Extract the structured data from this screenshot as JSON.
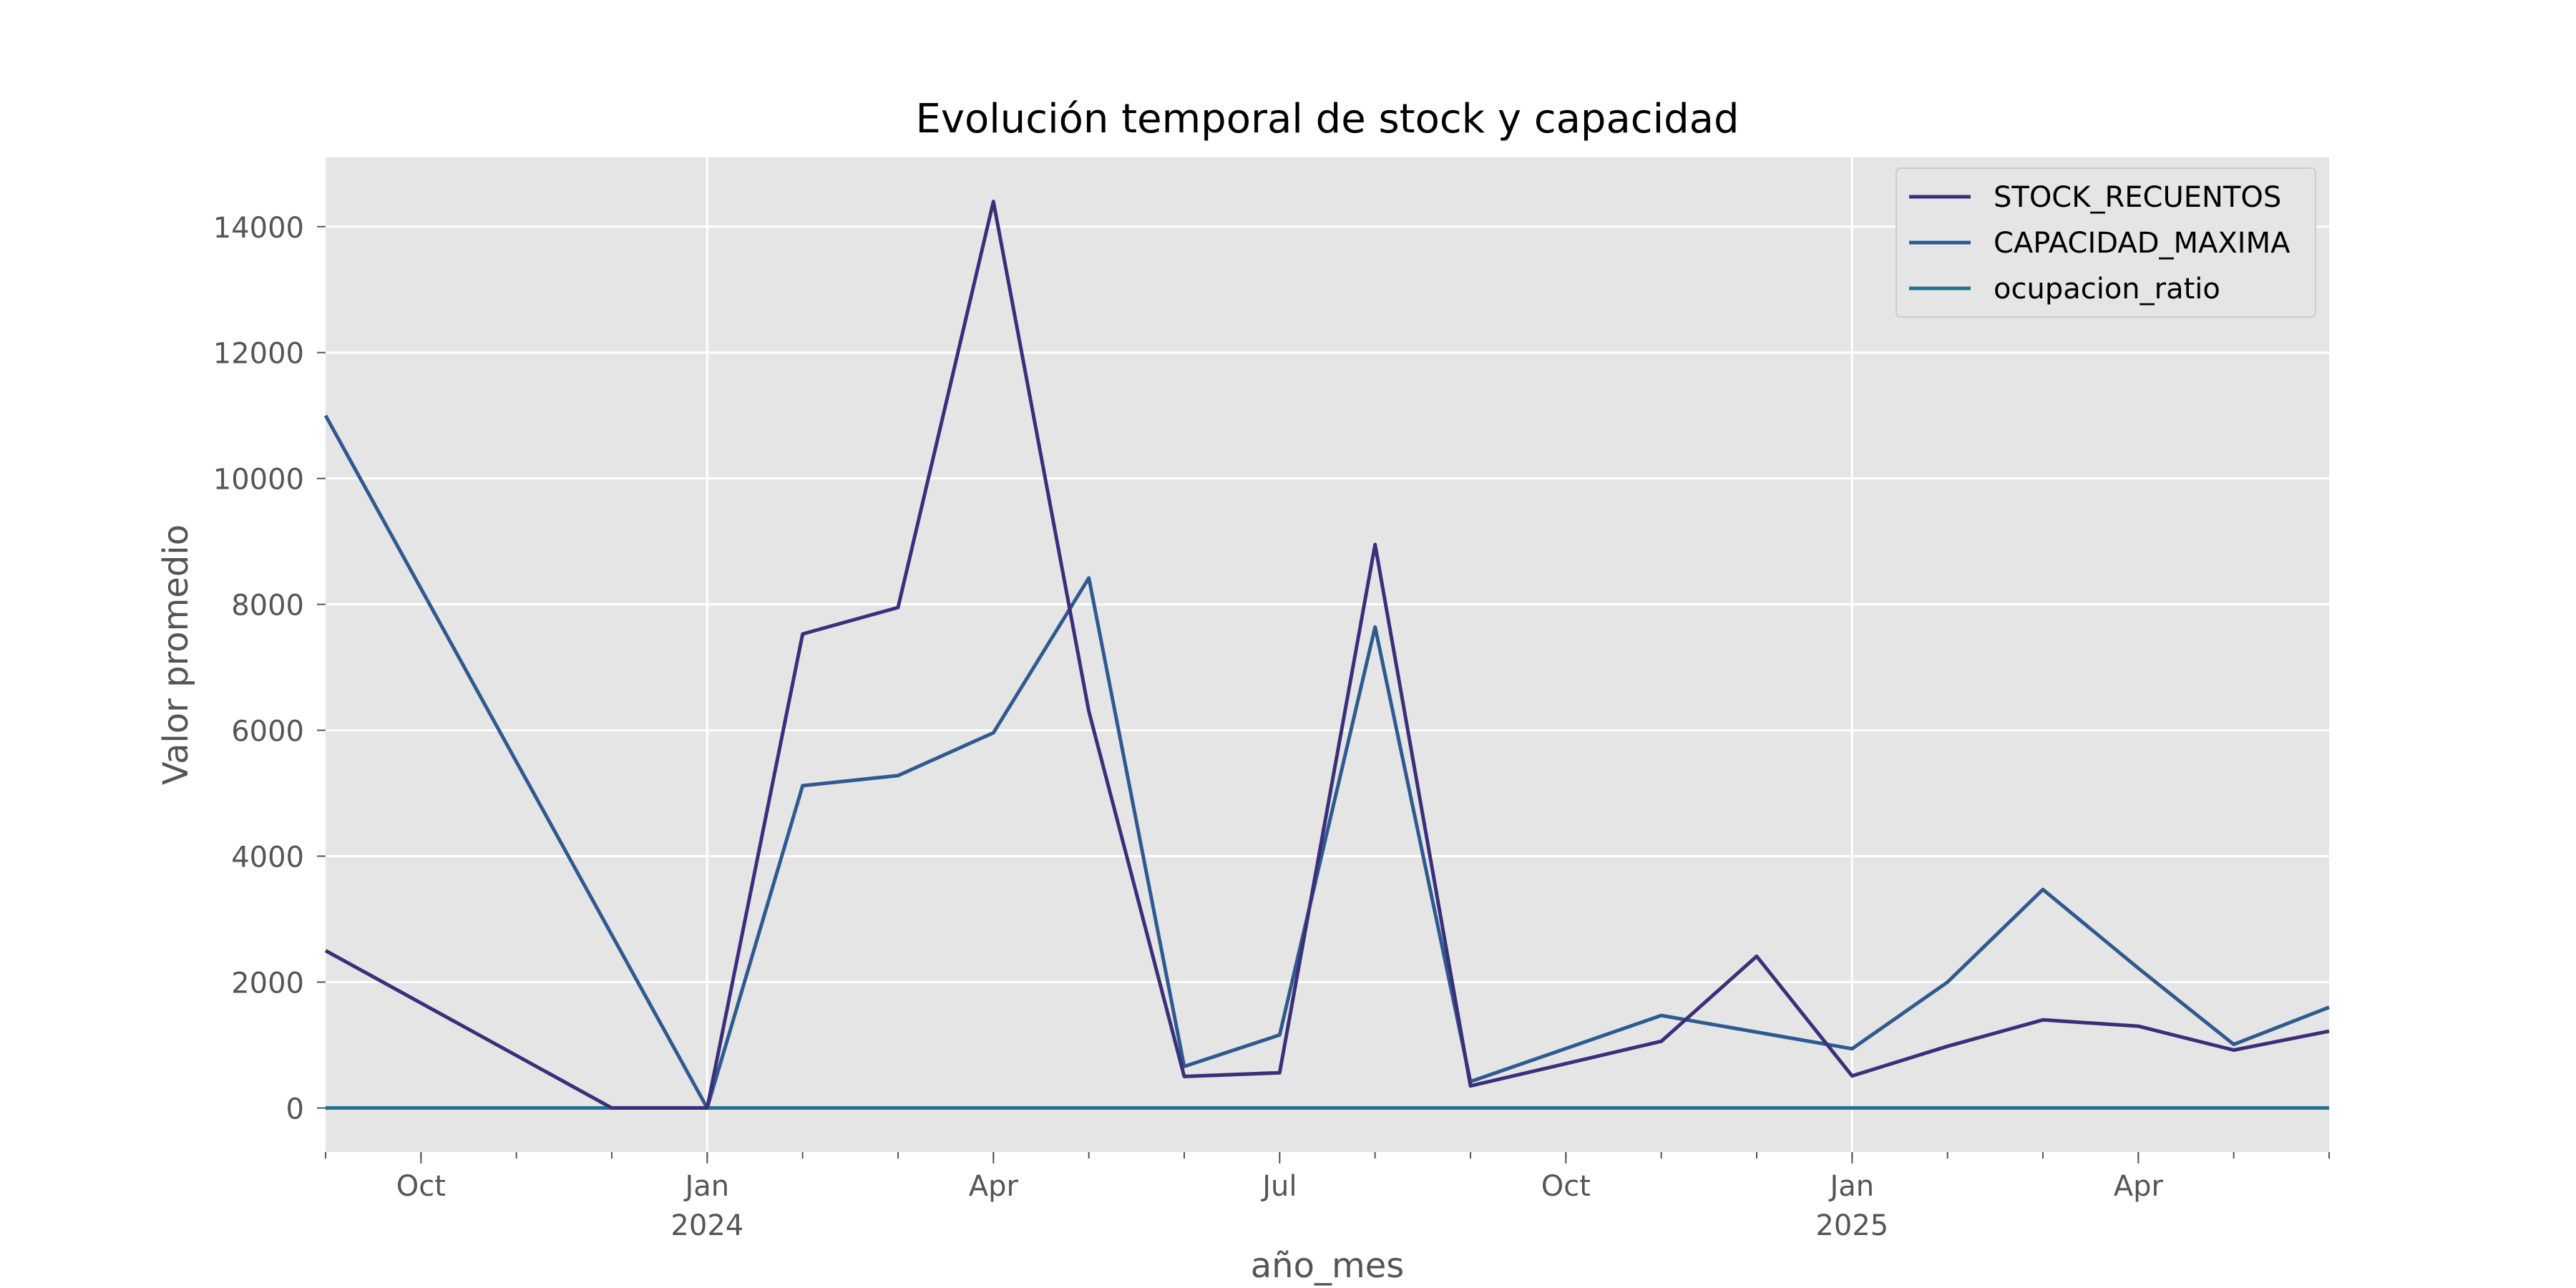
{
  "chart_data": {
    "type": "line",
    "title": "Evolución temporal de stock y capacidad",
    "xlabel": "año_mes",
    "ylabel": "Valor promedio",
    "x": [
      "2023-09",
      "2023-10",
      "2023-11",
      "2023-12",
      "2024-01",
      "2024-02",
      "2024-03",
      "2024-04",
      "2024-05",
      "2024-06",
      "2024-07",
      "2024-08",
      "2024-09",
      "2024-10",
      "2024-11",
      "2024-12",
      "2025-01",
      "2025-02",
      "2025-03",
      "2025-04",
      "2025-05",
      "2025-06"
    ],
    "series": [
      {
        "name": "STOCK_RECUENTOS",
        "color": "#3b2f7a",
        "values": [
          2500,
          null,
          null,
          0,
          0,
          7530,
          7950,
          14400,
          6300,
          500,
          560,
          8950,
          350,
          null,
          1060,
          2410,
          510,
          980,
          1400,
          1300,
          920,
          1220
        ]
      },
      {
        "name": "CAPACIDAD_MAXIMA",
        "color": "#2f5a90",
        "values": [
          11000,
          null,
          null,
          null,
          0,
          5120,
          5280,
          5960,
          8420,
          660,
          1160,
          7640,
          420,
          null,
          1470,
          null,
          940,
          2000,
          3470,
          2220,
          1010,
          1600
        ]
      },
      {
        "name": "ocupacion_ratio",
        "color": "#21748e",
        "values": [
          0,
          0,
          0,
          0,
          0,
          0,
          0,
          0,
          0,
          0,
          0,
          0,
          0,
          0,
          0,
          0,
          0,
          0,
          0,
          0,
          0,
          0
        ]
      }
    ],
    "xlim": [
      "2023-09",
      "2025-06"
    ],
    "ylim": [
      -700,
      15100
    ],
    "yticks": [
      0,
      2000,
      4000,
      6000,
      8000,
      10000,
      12000,
      14000
    ],
    "xtick_labels": [
      {
        "x": "2023-10",
        "label": "Oct",
        "sub": ""
      },
      {
        "x": "2024-01",
        "label": "Jan",
        "sub": "2024"
      },
      {
        "x": "2024-04",
        "label": "Apr",
        "sub": ""
      },
      {
        "x": "2024-07",
        "label": "Jul",
        "sub": ""
      },
      {
        "x": "2024-10",
        "label": "Oct",
        "sub": ""
      },
      {
        "x": "2025-01",
        "label": "Jan",
        "sub": "2025"
      },
      {
        "x": "2025-04",
        "label": "Apr",
        "sub": ""
      }
    ],
    "year_gridlines": [
      "2024-01",
      "2025-01"
    ],
    "grid": true,
    "legend": "top-right",
    "colors": {
      "background": "#e5e5e5",
      "grid": "#ffffff",
      "text": "#555555"
    }
  }
}
